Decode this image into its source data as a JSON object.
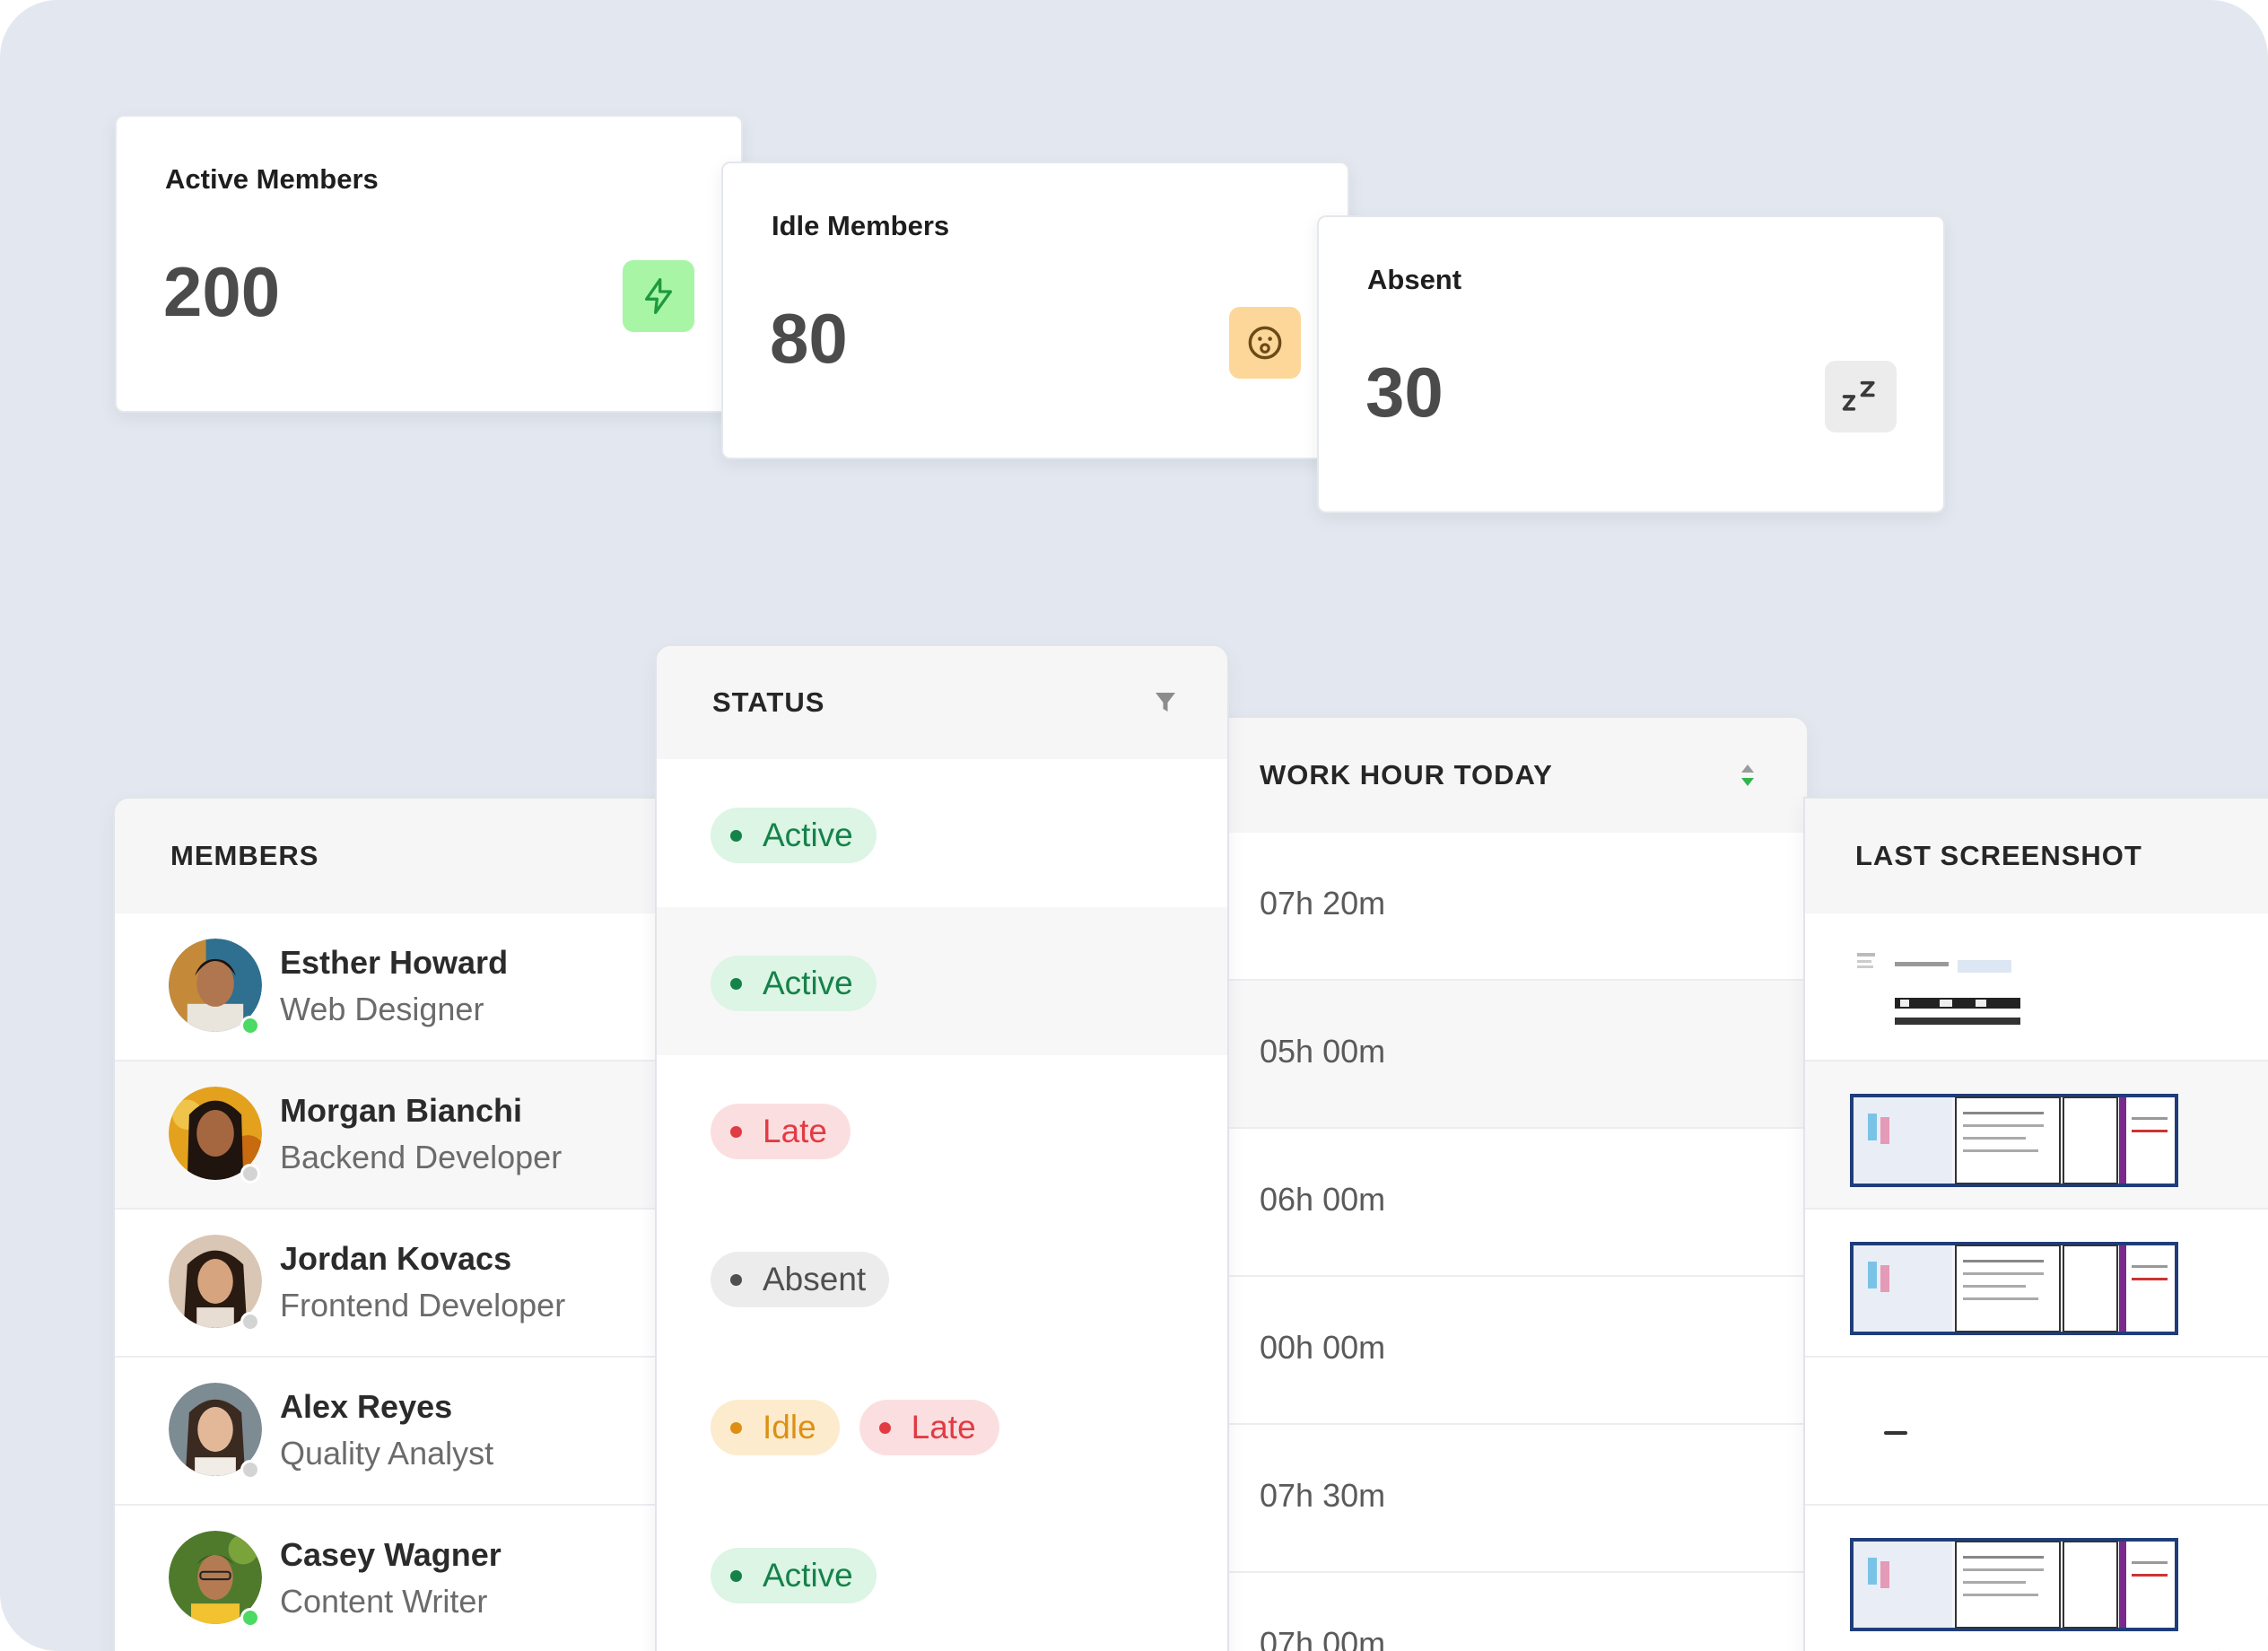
{
  "stats": {
    "active": {
      "label": "Active Members",
      "value": "200",
      "icon": "lightning-icon",
      "icon_bg": "#a8f5a6",
      "icon_color": "#1f9a3e"
    },
    "idle": {
      "label": "Idle Members",
      "value": "80",
      "icon": "surprised-face-icon",
      "icon_bg": "#fdd79a",
      "icon_color": "#6b4a16"
    },
    "absent": {
      "label": "Absent",
      "value": "30",
      "icon": "sleep-zz-icon",
      "icon_bg": "#ececec",
      "icon_color": "#3a3a3a"
    }
  },
  "table": {
    "columns": {
      "members": "MEMBERS",
      "status": "STATUS",
      "work_hours": "WORK HOUR TODAY",
      "last_screenshot": "LAST SCREENSHOT"
    },
    "rows": [
      {
        "name": "Esther Howard",
        "role": "Web Designer",
        "presence": "online",
        "statuses": [
          "Active"
        ],
        "work_hours": "07h 20m",
        "screenshot": "browser-thumbnail"
      },
      {
        "name": "Morgan Bianchi",
        "role": "Backend Developer",
        "presence": "offline",
        "statuses": [
          "Active"
        ],
        "work_hours": "05h 00m",
        "screenshot": "desktop-thumbnail"
      },
      {
        "name": "Jordan Kovacs",
        "role": "Frontend Developer",
        "presence": "offline",
        "statuses": [
          "Late"
        ],
        "work_hours": "06h 00m",
        "screenshot": "desktop-thumbnail"
      },
      {
        "name": "Alex Reyes",
        "role": "Quality Analyst",
        "presence": "offline",
        "statuses": [
          "Absent"
        ],
        "work_hours": "00h 00m",
        "screenshot": "–"
      },
      {
        "name": "Casey Wagner",
        "role": "Content Writer",
        "presence": "online",
        "statuses": [
          "Idle",
          "Late"
        ],
        "work_hours": "07h 30m",
        "screenshot": "desktop-thumbnail"
      },
      {
        "name": "",
        "role": "",
        "presence": "",
        "statuses": [
          "Active"
        ],
        "work_hours": "07h 00m",
        "screenshot": ""
      }
    ]
  },
  "colors": {
    "background": "#e3e8f0",
    "online": "#4cd964",
    "offline": "#d4d4d4"
  }
}
